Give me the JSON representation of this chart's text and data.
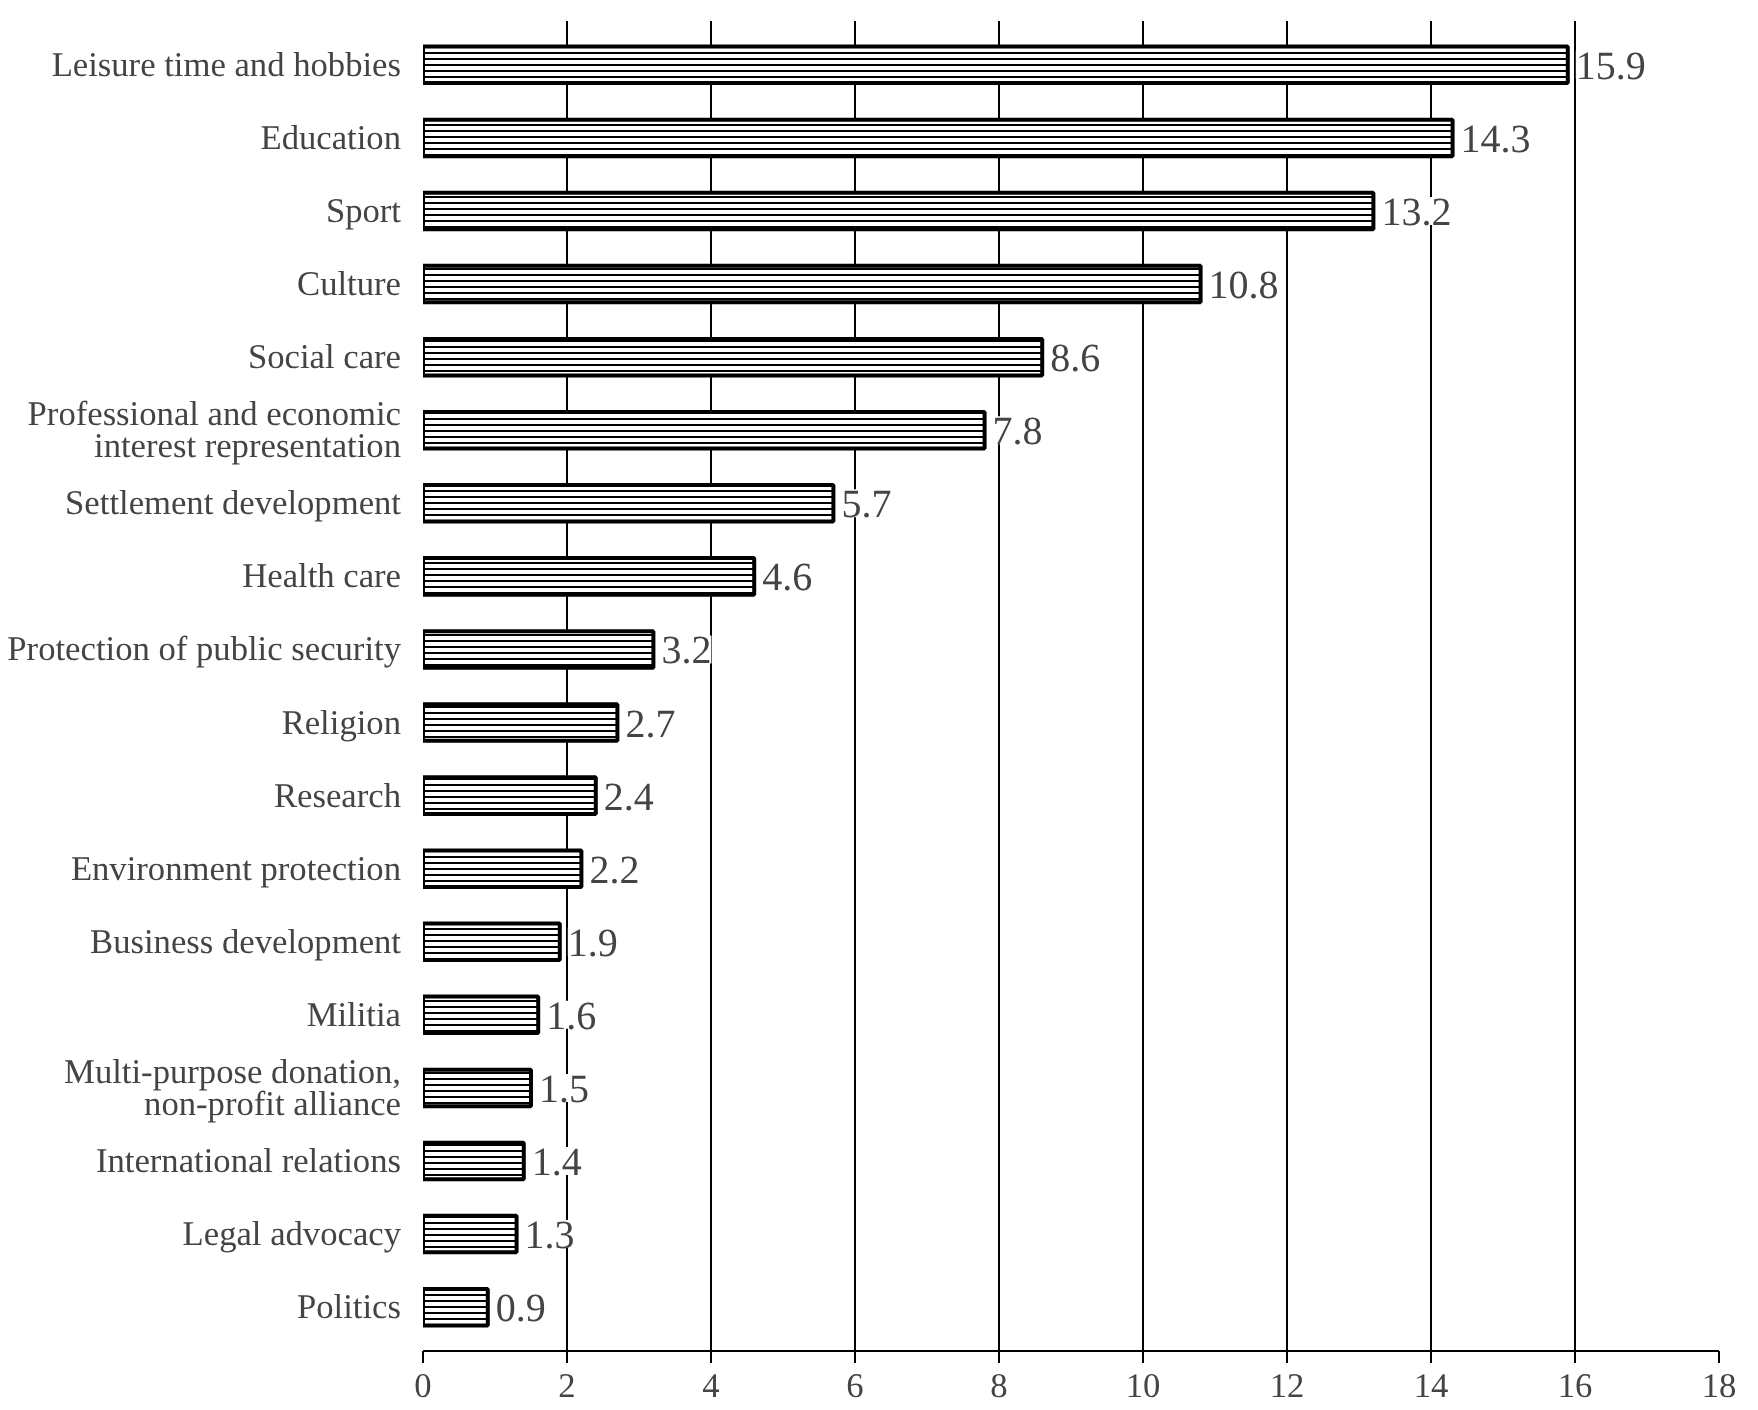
{
  "chart_data": {
    "type": "bar",
    "orientation": "horizontal",
    "categories": [
      "Leisure time and hobbies",
      "Education",
      "Sport",
      "Culture",
      "Social care",
      "Professional and economic\ninterest representation",
      "Settlement development",
      "Health care",
      "Protection of public security",
      "Religion",
      "Research",
      "Environment protection",
      "Business development",
      "Militia",
      "Multi-purpose donation,\nnon-profit alliance",
      "International relations",
      "Legal advocacy",
      "Politics"
    ],
    "values": [
      15.9,
      14.3,
      13.2,
      10.8,
      8.6,
      7.8,
      5.7,
      4.6,
      3.2,
      2.7,
      2.4,
      2.2,
      1.9,
      1.6,
      1.5,
      1.4,
      1.3,
      0.9
    ],
    "color": "#000000",
    "xlim": [
      0,
      18
    ],
    "xticks": [
      0,
      2,
      4,
      6,
      8,
      10,
      12,
      14,
      16,
      18
    ],
    "grid": "x",
    "data_labels": true
  }
}
